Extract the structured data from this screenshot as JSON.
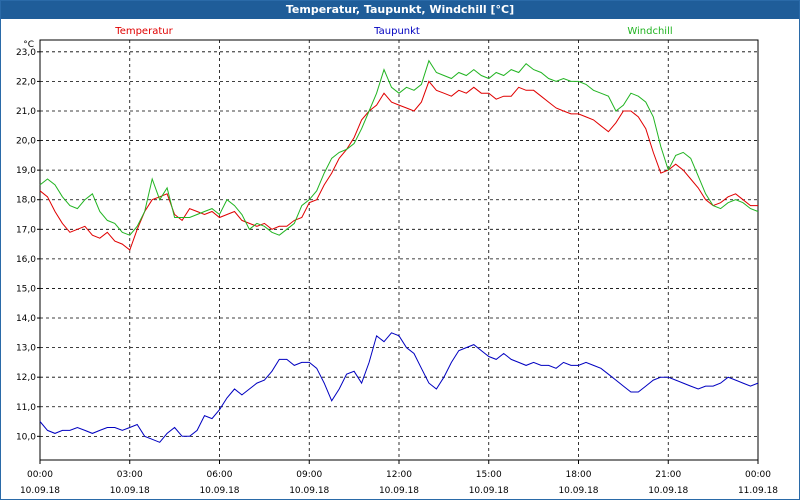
{
  "window": {
    "title": "Temperatur, Taupunkt, Windchill [°C]"
  },
  "chart_data": {
    "type": "line",
    "title": "Temperatur, Taupunkt, Windchill [°C]",
    "ylabel": "°C",
    "ylim": [
      9.2,
      23.4
    ],
    "xlim": [
      0,
      24
    ],
    "yticks": [
      "10,0",
      "11,0",
      "12,0",
      "13,0",
      "14,0",
      "15,0",
      "16,0",
      "17,0",
      "18,0",
      "19,0",
      "20,0",
      "21,0",
      "22,0",
      "23,0"
    ],
    "ytick_values": [
      10,
      11,
      12,
      13,
      14,
      15,
      16,
      17,
      18,
      19,
      20,
      21,
      22,
      23
    ],
    "xticks": [
      {
        "time": "00:00",
        "date": "10.09.18"
      },
      {
        "time": "03:00",
        "date": "10.09.18"
      },
      {
        "time": "06:00",
        "date": "10.09.18"
      },
      {
        "time": "09:00",
        "date": "10.09.18"
      },
      {
        "time": "12:00",
        "date": "10.09.18"
      },
      {
        "time": "15:00",
        "date": "10.09.18"
      },
      {
        "time": "18:00",
        "date": "10.09.18"
      },
      {
        "time": "21:00",
        "date": "10.09.18"
      },
      {
        "time": "00:00",
        "date": "11.09.18"
      }
    ],
    "xtick_values": [
      0,
      3,
      6,
      9,
      12,
      15,
      18,
      21,
      24
    ],
    "grid": true,
    "series": [
      {
        "name": "Temperatur",
        "color": "#e00000",
        "x": [
          0,
          0.25,
          0.5,
          0.75,
          1,
          1.25,
          1.5,
          1.75,
          2,
          2.25,
          2.5,
          2.75,
          3,
          3.25,
          3.5,
          3.75,
          4,
          4.25,
          4.5,
          4.75,
          5,
          5.25,
          5.5,
          5.75,
          6,
          6.25,
          6.5,
          6.75,
          7,
          7.25,
          7.5,
          7.75,
          8,
          8.25,
          8.5,
          8.75,
          9,
          9.25,
          9.5,
          9.75,
          10,
          10.25,
          10.5,
          10.75,
          11,
          11.25,
          11.5,
          11.75,
          12,
          12.25,
          12.5,
          12.75,
          13,
          13.25,
          13.5,
          13.75,
          14,
          14.25,
          14.5,
          14.75,
          15,
          15.25,
          15.5,
          15.75,
          16,
          16.25,
          16.5,
          16.75,
          17,
          17.25,
          17.5,
          17.75,
          18,
          18.25,
          18.5,
          18.75,
          19,
          19.25,
          19.5,
          19.75,
          20,
          20.25,
          20.5,
          20.75,
          21,
          21.25,
          21.5,
          21.75,
          22,
          22.25,
          22.5,
          22.75,
          23,
          23.25,
          23.5,
          23.75,
          24
        ],
        "y": [
          18.3,
          18.1,
          17.6,
          17.2,
          16.9,
          17.0,
          17.1,
          16.8,
          16.7,
          16.9,
          16.6,
          16.5,
          16.3,
          17.0,
          17.6,
          18.0,
          18.1,
          18.2,
          17.5,
          17.3,
          17.7,
          17.6,
          17.5,
          17.6,
          17.4,
          17.5,
          17.6,
          17.3,
          17.2,
          17.1,
          17.2,
          17.0,
          17.1,
          17.1,
          17.3,
          17.4,
          17.9,
          18.0,
          18.5,
          18.9,
          19.4,
          19.7,
          20.1,
          20.7,
          21.0,
          21.2,
          21.6,
          21.3,
          21.2,
          21.1,
          21.0,
          21.3,
          22.0,
          21.7,
          21.6,
          21.5,
          21.7,
          21.6,
          21.8,
          21.6,
          21.6,
          21.4,
          21.5,
          21.5,
          21.8,
          21.7,
          21.7,
          21.5,
          21.3,
          21.1,
          21.0,
          20.9,
          20.9,
          20.8,
          20.7,
          20.5,
          20.3,
          20.6,
          21.0,
          21.0,
          20.8,
          20.4,
          19.6,
          18.9,
          19.0,
          19.2,
          19.0,
          18.7,
          18.4,
          18.0,
          17.8,
          17.9,
          18.1,
          18.2,
          18.0,
          17.8,
          17.8
        ],
        "legend_position": "top-left"
      },
      {
        "name": "Taupunkt",
        "color": "#0000c0",
        "x": [
          0,
          0.25,
          0.5,
          0.75,
          1,
          1.25,
          1.5,
          1.75,
          2,
          2.25,
          2.5,
          2.75,
          3,
          3.25,
          3.5,
          3.75,
          4,
          4.25,
          4.5,
          4.75,
          5,
          5.25,
          5.5,
          5.75,
          6,
          6.25,
          6.5,
          6.75,
          7,
          7.25,
          7.5,
          7.75,
          8,
          8.25,
          8.5,
          8.75,
          9,
          9.25,
          9.5,
          9.75,
          10,
          10.25,
          10.5,
          10.75,
          11,
          11.25,
          11.5,
          11.75,
          12,
          12.25,
          12.5,
          12.75,
          13,
          13.25,
          13.5,
          13.75,
          14,
          14.25,
          14.5,
          14.75,
          15,
          15.25,
          15.5,
          15.75,
          16,
          16.25,
          16.5,
          16.75,
          17,
          17.25,
          17.5,
          17.75,
          18,
          18.25,
          18.5,
          18.75,
          19,
          19.25,
          19.5,
          19.75,
          20,
          20.25,
          20.5,
          20.75,
          21,
          21.25,
          21.5,
          21.75,
          22,
          22.25,
          22.5,
          22.75,
          23,
          23.25,
          23.5,
          23.75,
          24
        ],
        "y": [
          10.5,
          10.2,
          10.1,
          10.2,
          10.2,
          10.3,
          10.2,
          10.1,
          10.2,
          10.3,
          10.3,
          10.2,
          10.3,
          10.4,
          10.0,
          9.9,
          9.8,
          10.1,
          10.3,
          10.0,
          10.0,
          10.2,
          10.7,
          10.6,
          10.9,
          11.3,
          11.6,
          11.4,
          11.6,
          11.8,
          11.9,
          12.2,
          12.6,
          12.6,
          12.4,
          12.5,
          12.5,
          12.3,
          11.8,
          11.2,
          11.6,
          12.1,
          12.2,
          11.8,
          12.5,
          13.4,
          13.2,
          13.5,
          13.4,
          13.0,
          12.8,
          12.3,
          11.8,
          11.6,
          12.0,
          12.5,
          12.9,
          13.0,
          13.1,
          12.9,
          12.7,
          12.6,
          12.8,
          12.6,
          12.5,
          12.4,
          12.5,
          12.4,
          12.4,
          12.3,
          12.5,
          12.4,
          12.4,
          12.5,
          12.4,
          12.3,
          12.1,
          11.9,
          11.7,
          11.5,
          11.5,
          11.7,
          11.9,
          12.0,
          12.0,
          11.9,
          11.8,
          11.7,
          11.6,
          11.7,
          11.7,
          11.8,
          12.0,
          11.9,
          11.8,
          11.7,
          11.8
        ],
        "legend_position": "top-center"
      },
      {
        "name": "Windchill",
        "color": "#22b422",
        "x": [
          0,
          0.25,
          0.5,
          0.75,
          1,
          1.25,
          1.5,
          1.75,
          2,
          2.25,
          2.5,
          2.75,
          3,
          3.25,
          3.5,
          3.75,
          4,
          4.25,
          4.5,
          4.75,
          5,
          5.25,
          5.5,
          5.75,
          6,
          6.25,
          6.5,
          6.75,
          7,
          7.25,
          7.5,
          7.75,
          8,
          8.25,
          8.5,
          8.75,
          9,
          9.25,
          9.5,
          9.75,
          10,
          10.25,
          10.5,
          10.75,
          11,
          11.25,
          11.5,
          11.75,
          12,
          12.25,
          12.5,
          12.75,
          13,
          13.25,
          13.5,
          13.75,
          14,
          14.25,
          14.5,
          14.75,
          15,
          15.25,
          15.5,
          15.75,
          16,
          16.25,
          16.5,
          16.75,
          17,
          17.25,
          17.5,
          17.75,
          18,
          18.25,
          18.5,
          18.75,
          19,
          19.25,
          19.5,
          19.75,
          20,
          20.25,
          20.5,
          20.75,
          21,
          21.25,
          21.5,
          21.75,
          22,
          22.25,
          22.5,
          22.75,
          23,
          23.25,
          23.5,
          23.75,
          24
        ],
        "y": [
          18.5,
          18.7,
          18.5,
          18.1,
          17.8,
          17.7,
          18.0,
          18.2,
          17.6,
          17.3,
          17.2,
          16.9,
          16.8,
          17.1,
          17.6,
          18.7,
          18.0,
          18.4,
          17.4,
          17.4,
          17.4,
          17.5,
          17.6,
          17.7,
          17.5,
          18.0,
          17.8,
          17.5,
          17.0,
          17.2,
          17.1,
          16.9,
          16.8,
          17.0,
          17.2,
          17.8,
          18.0,
          18.3,
          18.9,
          19.4,
          19.6,
          19.7,
          19.9,
          20.4,
          21.0,
          21.6,
          22.4,
          21.8,
          21.6,
          21.8,
          21.7,
          21.9,
          22.7,
          22.3,
          22.2,
          22.1,
          22.3,
          22.2,
          22.4,
          22.2,
          22.1,
          22.3,
          22.2,
          22.4,
          22.3,
          22.6,
          22.4,
          22.3,
          22.1,
          22.0,
          22.1,
          22.0,
          22.0,
          21.9,
          21.7,
          21.6,
          21.5,
          21.0,
          21.2,
          21.6,
          21.5,
          21.3,
          20.8,
          19.8,
          19.0,
          19.5,
          19.6,
          19.4,
          18.8,
          18.2,
          17.8,
          17.7,
          17.9,
          18.0,
          17.9,
          17.7,
          17.6
        ],
        "legend_position": "top-right"
      }
    ]
  }
}
